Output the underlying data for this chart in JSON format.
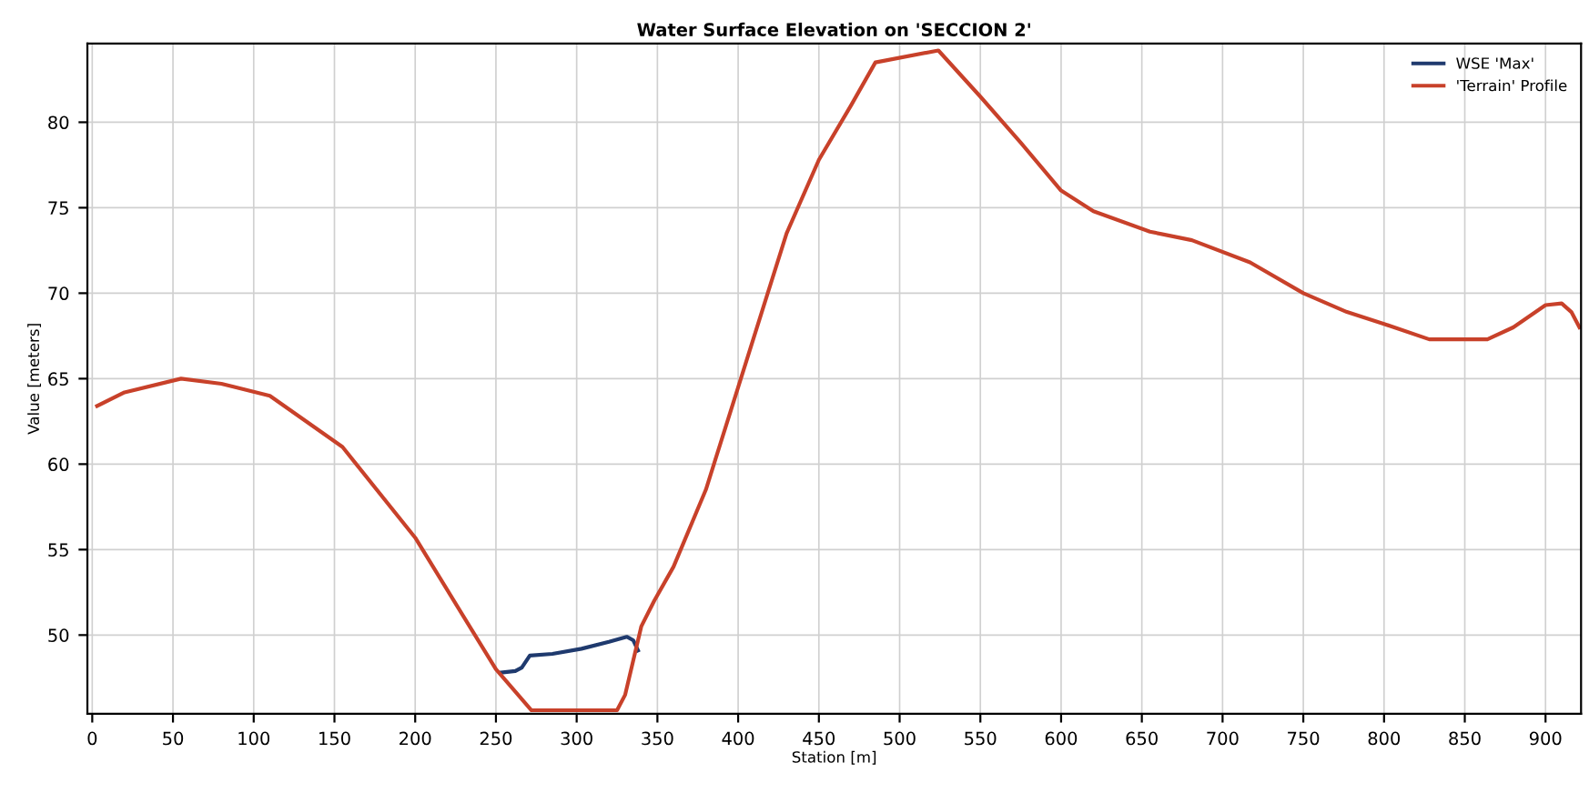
{
  "chart_data": {
    "type": "line",
    "title": "Water Surface Elevation on 'SECCION 2'",
    "xlabel": "Station [m]",
    "ylabel": "Value [meters]",
    "xlim": [
      -3,
      922
    ],
    "ylim": [
      45.4,
      84.6
    ],
    "xticks": [
      0,
      50,
      100,
      150,
      200,
      250,
      300,
      350,
      400,
      450,
      500,
      550,
      600,
      650,
      700,
      750,
      800,
      850,
      900
    ],
    "yticks": [
      50,
      55,
      60,
      65,
      70,
      75,
      80
    ],
    "grid": true,
    "legend": "top right",
    "marker": "none",
    "line_style": "solid",
    "series": [
      {
        "name": "WSE 'Max'",
        "color": "#1f3a6e",
        "x": [
          253,
          262,
          266,
          271,
          285,
          303,
          320,
          331,
          335,
          338
        ],
        "values": [
          47.8,
          47.9,
          48.1,
          48.8,
          48.9,
          49.2,
          49.6,
          49.9,
          49.7,
          49.1
        ]
      },
      {
        "name": "'Terrain' Profile",
        "color": "#c8412a",
        "x": [
          3,
          20,
          55,
          80,
          110,
          155,
          200,
          250,
          272,
          325,
          330,
          340,
          348,
          360,
          380,
          400,
          415,
          430,
          450,
          470,
          485,
          524,
          550,
          575,
          600,
          620,
          655,
          681,
          717,
          750,
          777,
          800,
          828,
          864,
          880,
          900,
          910,
          916,
          921
        ],
        "values": [
          63.4,
          64.2,
          65.0,
          64.7,
          64.0,
          61.0,
          55.7,
          48.0,
          45.6,
          45.6,
          46.5,
          50.5,
          52.0,
          54.0,
          58.5,
          64.5,
          69.0,
          73.5,
          77.8,
          81.0,
          83.5,
          84.2,
          81.5,
          78.8,
          76.0,
          74.8,
          73.6,
          73.1,
          71.8,
          70.0,
          68.9,
          68.2,
          67.3,
          67.3,
          68.0,
          69.3,
          69.4,
          68.9,
          68.0
        ]
      }
    ]
  }
}
